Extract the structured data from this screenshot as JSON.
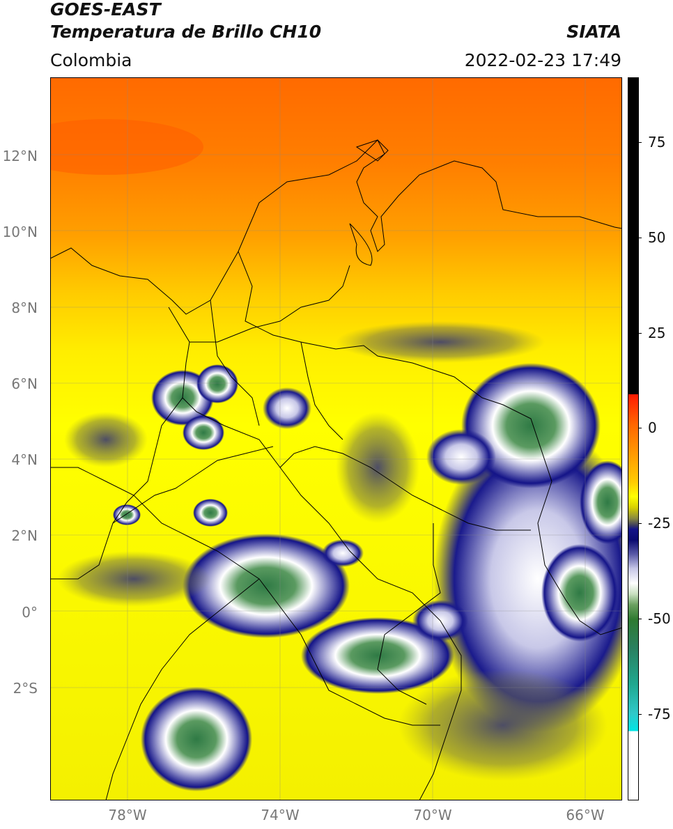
{
  "header": {
    "title_line1": "GOES-EAST",
    "title_line2": "Temperatura de Brillo CH10",
    "region": "Colombia",
    "brand": "SIATA",
    "timestamp": "2022-02-23 17:49"
  },
  "map": {
    "lat_labels": [
      "12°N",
      "10°N",
      "8°N",
      "6°N",
      "4°N",
      "2°N",
      "0°",
      "2°S"
    ],
    "lon_labels": [
      "78°W",
      "74°W",
      "70°W",
      "66°W"
    ]
  },
  "colorbar": {
    "tick_labels": [
      "75",
      "50",
      "25",
      "0",
      "-25",
      "-50",
      "-75"
    ],
    "colors": {
      "warm_top": "#ff6a00",
      "mid_yellow": "#ffff00",
      "cold_navy": "#141488",
      "cold_white": "#ffffff",
      "coldest_green": "#2f7a30",
      "coldest_cyan": "#00e5e5"
    }
  }
}
